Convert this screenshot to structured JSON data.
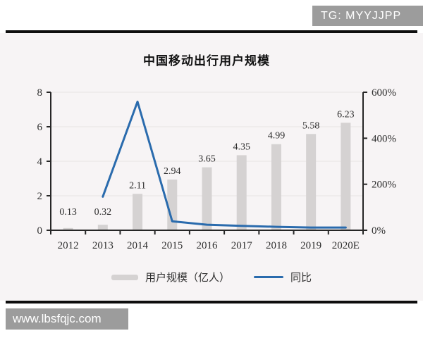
{
  "watermarks": {
    "top_right": "TG: MYYJJPP",
    "bottom_left": "www.lbsfqjc.com"
  },
  "chart_data": {
    "type": "bar",
    "title": "中国移动出行用户规模",
    "categories": [
      "2012",
      "2013",
      "2014",
      "2015",
      "2016",
      "2017",
      "2018",
      "2019",
      "2020E"
    ],
    "series": [
      {
        "name": "用户规模（亿人）",
        "type": "bar",
        "axis": "left",
        "values": [
          0.13,
          0.32,
          2.11,
          2.94,
          3.65,
          4.35,
          4.99,
          5.58,
          6.23
        ],
        "labels": [
          "0.13",
          "0.32",
          "2.11",
          "2.94",
          "3.65",
          "4.35",
          "4.99",
          "5.58",
          "6.23"
        ]
      },
      {
        "name": "同比",
        "type": "line",
        "axis": "right",
        "values_pct": [
          null,
          146,
          559,
          39,
          24,
          19,
          15,
          12,
          12
        ]
      }
    ],
    "left_axis": {
      "ticks": [
        0,
        2,
        4,
        6,
        8
      ],
      "max": 8
    },
    "right_axis": {
      "ticks": [
        "0%",
        "200%",
        "400%",
        "600%"
      ],
      "tick_values": [
        0,
        200,
        400,
        600
      ],
      "max": 600
    },
    "legend": [
      {
        "label": "用户规模（亿人）",
        "swatch": "bar"
      },
      {
        "label": "同比",
        "swatch": "line"
      }
    ],
    "grid": "horizontal-light",
    "legend_position": "bottom-center",
    "colors": {
      "bar": "#d5d2d2",
      "line": "#2a6bad",
      "grid": "#e7e3e4",
      "axis": "#262626",
      "card_bg": "#f7f4f5",
      "badge_bg": "#9c9c9c",
      "badge_text": "#ffffff",
      "rule": "#0e0e0e"
    }
  }
}
